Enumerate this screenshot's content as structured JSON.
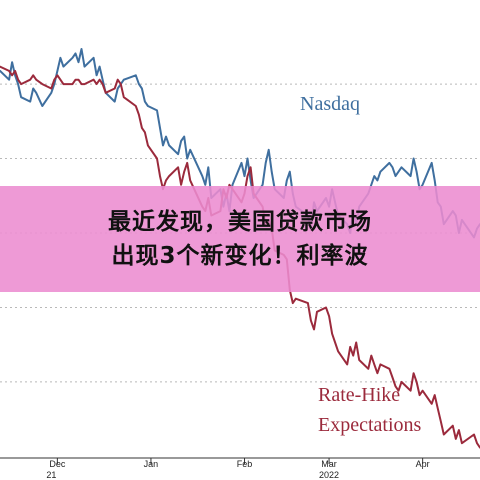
{
  "chart_data": {
    "type": "line",
    "x_ticks": [
      {
        "label": "Dec",
        "x": "2021-12-01"
      },
      {
        "label": "Jan",
        "x": "2022-01-01"
      },
      {
        "label": "Feb",
        "x": "2022-02-01"
      },
      {
        "label": "Mar",
        "x": "2022-03-01"
      },
      {
        "label": "Apr",
        "x": "2022-04-01"
      }
    ],
    "year_labels": [
      {
        "label": "21",
        "x": "2021-11-29"
      },
      {
        "label": "2022",
        "x": "2022-03-01"
      }
    ],
    "xlim": [
      "2021-11-12",
      "2022-04-20"
    ],
    "ylim": [
      0,
      100
    ],
    "y_gridlines": [
      84,
      67,
      50,
      33,
      16
    ],
    "grid": true,
    "series": [
      {
        "name": "Nasdaq",
        "color": "#3f6f9f",
        "x": [
          "2021-11-12",
          "2021-11-15",
          "2021-11-16",
          "2021-11-17",
          "2021-11-18",
          "2021-11-19",
          "2021-11-22",
          "2021-11-23",
          "2021-11-24",
          "2021-11-26",
          "2021-11-29",
          "2021-11-30",
          "2021-12-01",
          "2021-12-02",
          "2021-12-03",
          "2021-12-06",
          "2021-12-07",
          "2021-12-08",
          "2021-12-09",
          "2021-12-10",
          "2021-12-13",
          "2021-12-14",
          "2021-12-15",
          "2021-12-16",
          "2021-12-17",
          "2021-12-20",
          "2021-12-21",
          "2021-12-22",
          "2021-12-23",
          "2021-12-27",
          "2021-12-28",
          "2021-12-29",
          "2021-12-30",
          "2021-12-31",
          "2022-01-03",
          "2022-01-04",
          "2022-01-05",
          "2022-01-06",
          "2022-01-07",
          "2022-01-10",
          "2022-01-11",
          "2022-01-12",
          "2022-01-13",
          "2022-01-14",
          "2022-01-18",
          "2022-01-19",
          "2022-01-20",
          "2022-01-21",
          "2022-01-24",
          "2022-01-25",
          "2022-01-26",
          "2022-01-27",
          "2022-01-28",
          "2022-01-31",
          "2022-02-01",
          "2022-02-02",
          "2022-02-03",
          "2022-02-04",
          "2022-02-07",
          "2022-02-08",
          "2022-02-09",
          "2022-02-10",
          "2022-02-11",
          "2022-02-14",
          "2022-02-15",
          "2022-02-16",
          "2022-02-17",
          "2022-02-18",
          "2022-02-22",
          "2022-02-23",
          "2022-02-24",
          "2022-02-25",
          "2022-02-28",
          "2022-03-01",
          "2022-03-02",
          "2022-03-03",
          "2022-03-04",
          "2022-03-07",
          "2022-03-08",
          "2022-03-09",
          "2022-03-10",
          "2022-03-11",
          "2022-03-14",
          "2022-03-15",
          "2022-03-16",
          "2022-03-17",
          "2022-03-18",
          "2022-03-21",
          "2022-03-22",
          "2022-03-23",
          "2022-03-24",
          "2022-03-25",
          "2022-03-28",
          "2022-03-29",
          "2022-03-30",
          "2022-03-31",
          "2022-04-01",
          "2022-04-04",
          "2022-04-05",
          "2022-04-06",
          "2022-04-07",
          "2022-04-08",
          "2022-04-11",
          "2022-04-12",
          "2022-04-13",
          "2022-04-14",
          "2022-04-18",
          "2022-04-19",
          "2022-04-20"
        ],
        "y": [
          87,
          85,
          89,
          86,
          84,
          81,
          80,
          83,
          82,
          79,
          82,
          84,
          87,
          90,
          88,
          90,
          91,
          89,
          92,
          88,
          90,
          86,
          88,
          85,
          82,
          80,
          83,
          84,
          85,
          86,
          84,
          83,
          80,
          79,
          78,
          74,
          70,
          72,
          70,
          68,
          71,
          72,
          67,
          69,
          63,
          61,
          65,
          58,
          60,
          56,
          59,
          55,
          61,
          66,
          63,
          67,
          62,
          58,
          61,
          66,
          69,
          64,
          60,
          58,
          62,
          64,
          59,
          56,
          54,
          51,
          57,
          55,
          58,
          56,
          60,
          57,
          54,
          52,
          50,
          55,
          52,
          56,
          59,
          61,
          63,
          62,
          64,
          66,
          65,
          63,
          64,
          65,
          63,
          67,
          64,
          60,
          61,
          66,
          62,
          57,
          56,
          52,
          55,
          54,
          50,
          53,
          49,
          51,
          52
        ]
      },
      {
        "name": "Rate-Hike Expectations",
        "color": "#9b2a3c",
        "x": [
          "2021-11-12",
          "2021-11-15",
          "2021-11-16",
          "2021-11-17",
          "2021-11-18",
          "2021-11-19",
          "2021-11-22",
          "2021-11-23",
          "2021-11-24",
          "2021-11-26",
          "2021-11-29",
          "2021-11-30",
          "2021-12-01",
          "2021-12-02",
          "2021-12-03",
          "2021-12-06",
          "2021-12-07",
          "2021-12-08",
          "2021-12-09",
          "2021-12-10",
          "2021-12-13",
          "2021-12-14",
          "2021-12-15",
          "2021-12-16",
          "2021-12-17",
          "2021-12-20",
          "2021-12-21",
          "2021-12-22",
          "2021-12-23",
          "2021-12-27",
          "2021-12-28",
          "2021-12-29",
          "2021-12-30",
          "2021-12-31",
          "2022-01-03",
          "2022-01-04",
          "2022-01-05",
          "2022-01-06",
          "2022-01-07",
          "2022-01-10",
          "2022-01-11",
          "2022-01-12",
          "2022-01-13",
          "2022-01-14",
          "2022-01-18",
          "2022-01-19",
          "2022-01-20",
          "2022-01-21",
          "2022-01-24",
          "2022-01-25",
          "2022-01-26",
          "2022-01-27",
          "2022-01-28",
          "2022-01-31",
          "2022-02-01",
          "2022-02-02",
          "2022-02-03",
          "2022-02-04",
          "2022-02-07",
          "2022-02-08",
          "2022-02-09",
          "2022-02-10",
          "2022-02-11",
          "2022-02-14",
          "2022-02-15",
          "2022-02-16",
          "2022-02-17",
          "2022-02-18",
          "2022-02-22",
          "2022-02-23",
          "2022-02-24",
          "2022-02-25",
          "2022-02-28",
          "2022-03-01",
          "2022-03-02",
          "2022-03-03",
          "2022-03-04",
          "2022-03-07",
          "2022-03-08",
          "2022-03-09",
          "2022-03-10",
          "2022-03-11",
          "2022-03-14",
          "2022-03-15",
          "2022-03-16",
          "2022-03-17",
          "2022-03-18",
          "2022-03-21",
          "2022-03-22",
          "2022-03-23",
          "2022-03-24",
          "2022-03-25",
          "2022-03-28",
          "2022-03-29",
          "2022-03-30",
          "2022-03-31",
          "2022-04-01",
          "2022-04-04",
          "2022-04-05",
          "2022-04-06",
          "2022-04-07",
          "2022-04-08",
          "2022-04-11",
          "2022-04-12",
          "2022-04-13",
          "2022-04-14",
          "2022-04-18",
          "2022-04-19",
          "2022-04-20"
        ],
        "y": [
          88,
          87,
          86,
          87,
          85,
          84,
          85,
          86,
          85,
          84,
          83,
          85,
          86,
          85,
          84,
          84,
          85,
          85,
          84,
          84,
          85,
          84,
          85,
          84,
          82,
          83,
          85,
          84,
          81,
          79,
          77,
          74,
          73,
          70,
          67,
          63,
          60,
          62,
          63,
          65,
          61,
          64,
          66,
          62,
          56,
          55,
          58,
          54,
          55,
          60,
          58,
          61,
          60,
          57,
          59,
          63,
          65,
          59,
          56,
          52,
          53,
          51,
          46,
          45,
          44,
          37,
          34,
          35,
          34,
          30,
          28,
          32,
          33,
          31,
          27,
          25,
          23,
          20,
          24,
          22,
          25,
          21,
          19,
          22,
          20,
          18,
          20,
          19,
          17,
          15,
          14,
          16,
          14,
          18,
          16,
          13,
          14,
          11,
          13,
          10,
          7,
          4,
          6,
          3,
          5,
          2,
          4,
          2,
          1
        ]
      }
    ],
    "annotations": [
      {
        "text": "Nasdaq",
        "color": "#3f6f9f"
      },
      {
        "text": "Rate-Hike",
        "color": "#9b2a3c"
      },
      {
        "text": "Expectations",
        "color": "#9b2a3c"
      }
    ]
  },
  "banner": {
    "lines": [
      "最近发现，美国贷款市场",
      "出现3个新变化！利率波"
    ],
    "background": "#ec8cd0"
  }
}
